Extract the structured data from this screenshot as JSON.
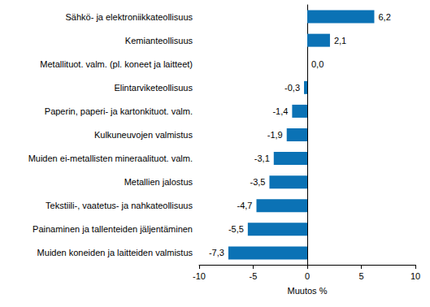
{
  "chart_data": {
    "type": "bar",
    "orientation": "horizontal",
    "categories": [
      "Sähkö- ja elektroniikkateollisuus",
      "Kemianteollisuus",
      "Metallituot. valm. (pl. koneet ja laitteet)",
      "Elintarviketeollisuus",
      "Paperin, paperi- ja kartonkituot. valm.",
      "Kulkuneuvojen valmistus",
      "Muiden ei-metallisten mineraalituot. valm.",
      "Metallien jalostus",
      "Tekstiili-, vaatetus- ja nahkateollisuus",
      "Painaminen ja tallenteiden jäljentäminen",
      "Muiden koneiden ja laitteiden valmistus"
    ],
    "values": [
      6.2,
      2.1,
      0.0,
      -0.3,
      -1.4,
      -1.9,
      -3.1,
      -3.5,
      -4.7,
      -5.5,
      -7.3
    ],
    "value_labels": [
      "6,2",
      "2,1",
      "0,0",
      "-0,3",
      "-1,4",
      "-1,9",
      "-3,1",
      "-3,5",
      "-4,7",
      "-5,5",
      "-7,3"
    ],
    "data_labels": true,
    "color": "#0b72b5",
    "xlabel": "Muutos %",
    "xlim": [
      -10,
      10
    ],
    "xticks": [
      -10,
      -5,
      0,
      5,
      10
    ],
    "grid": false
  }
}
